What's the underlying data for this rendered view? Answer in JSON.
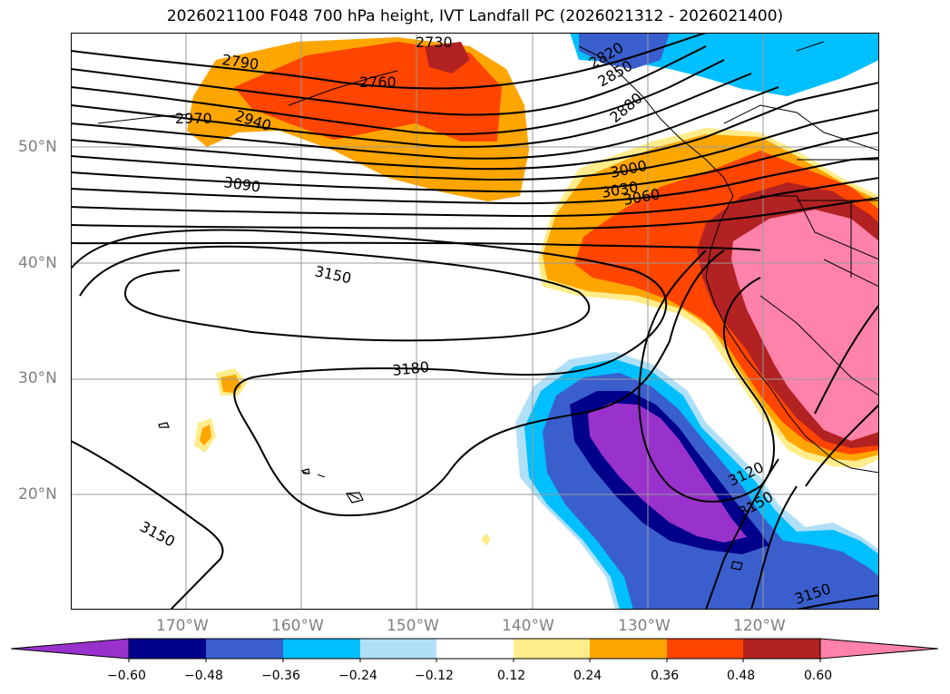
{
  "title": "2026021100 F048 700 hPa height, IVT Landfall PC (2026021312 - 2026021400)",
  "lat_labels": [
    "50°N",
    "40°N",
    "30°N",
    "20°N"
  ],
  "lon_labels": [
    "170°W",
    "160°W",
    "150°W",
    "140°W",
    "130°W",
    "120°W"
  ],
  "contour_labels": [
    "2730",
    "2760",
    "2790",
    "2940",
    "2970",
    "3000",
    "3030",
    "3060",
    "3090",
    "3120",
    "3150",
    "3150",
    "3150",
    "3150",
    "3180",
    "2820",
    "2850",
    "2880"
  ],
  "colorbar": {
    "ticks": [
      "−0.60",
      "−0.48",
      "−0.36",
      "−0.24",
      "−0.12",
      "0.12",
      "0.24",
      "0.36",
      "0.48",
      "0.60"
    ],
    "colors": {
      "lt_-0.60": "#9932cc",
      "-0.60_-0.48": "#00008b",
      "-0.48_-0.36": "#3a5fcd",
      "-0.36_-0.24": "#00bfff",
      "-0.24_-0.12": "#b0e0f8",
      "-0.12_0.12": "#ffffff",
      "0.12_0.24": "#ffec8b",
      "0.24_0.36": "#ffa500",
      "0.36_0.48": "#ff4500",
      "0.48_0.60": "#b22222",
      "gt_0.60": "#ff82ab"
    }
  }
}
